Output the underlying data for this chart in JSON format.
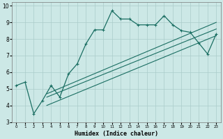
{
  "xlabel": "Humidex (Indice chaleur)",
  "bg_color": "#cce8e6",
  "line_color": "#1a6e62",
  "grid_color": "#aaccca",
  "xlim": [
    -0.5,
    23.5
  ],
  "ylim": [
    3,
    10.2
  ],
  "xticks": [
    0,
    1,
    2,
    3,
    4,
    5,
    6,
    7,
    8,
    9,
    10,
    11,
    12,
    13,
    14,
    15,
    16,
    17,
    18,
    19,
    20,
    21,
    22,
    23
  ],
  "yticks": [
    3,
    4,
    5,
    6,
    7,
    8,
    9,
    10
  ],
  "series1_x": [
    0,
    1,
    2,
    3,
    4,
    5,
    6,
    7,
    8,
    9,
    10,
    11,
    12,
    13,
    14,
    15,
    16,
    17,
    18,
    19,
    20,
    21,
    22,
    23
  ],
  "series1_y": [
    5.2,
    5.4,
    3.5,
    4.3,
    5.2,
    4.5,
    5.9,
    6.5,
    7.7,
    8.55,
    8.55,
    9.7,
    9.2,
    9.2,
    8.85,
    8.85,
    8.85,
    9.4,
    8.85,
    8.5,
    8.4,
    7.75,
    7.1,
    8.3
  ],
  "line2_x": [
    3.5,
    23
  ],
  "line2_y": [
    4.0,
    8.2
  ],
  "line3_x": [
    3.5,
    23
  ],
  "line3_y": [
    4.5,
    8.6
  ],
  "line4_x": [
    3.5,
    23
  ],
  "line4_y": [
    4.7,
    9.0
  ]
}
